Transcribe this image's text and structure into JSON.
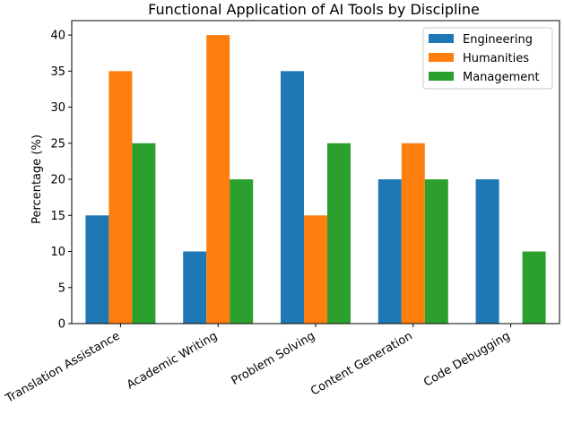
{
  "chart_data": {
    "type": "bar",
    "title": "Functional Application of AI Tools by Discipline",
    "xlabel": "",
    "ylabel": "Percentage (%)",
    "ylim": [
      0,
      42
    ],
    "yticks": [
      0,
      5,
      10,
      15,
      20,
      25,
      30,
      35,
      40
    ],
    "categories": [
      "Translation Assistance",
      "Academic Writing",
      "Problem Solving",
      "Content Generation",
      "Code Debugging"
    ],
    "series": [
      {
        "name": "Engineering",
        "color": "#1f77b4",
        "values": [
          15,
          10,
          35,
          20,
          20
        ]
      },
      {
        "name": "Humanities",
        "color": "#ff7f0e",
        "values": [
          35,
          40,
          15,
          25,
          0
        ]
      },
      {
        "name": "Management",
        "color": "#2ca02c",
        "values": [
          25,
          20,
          25,
          20,
          10
        ]
      }
    ],
    "legend": "top-right",
    "grid": false
  }
}
